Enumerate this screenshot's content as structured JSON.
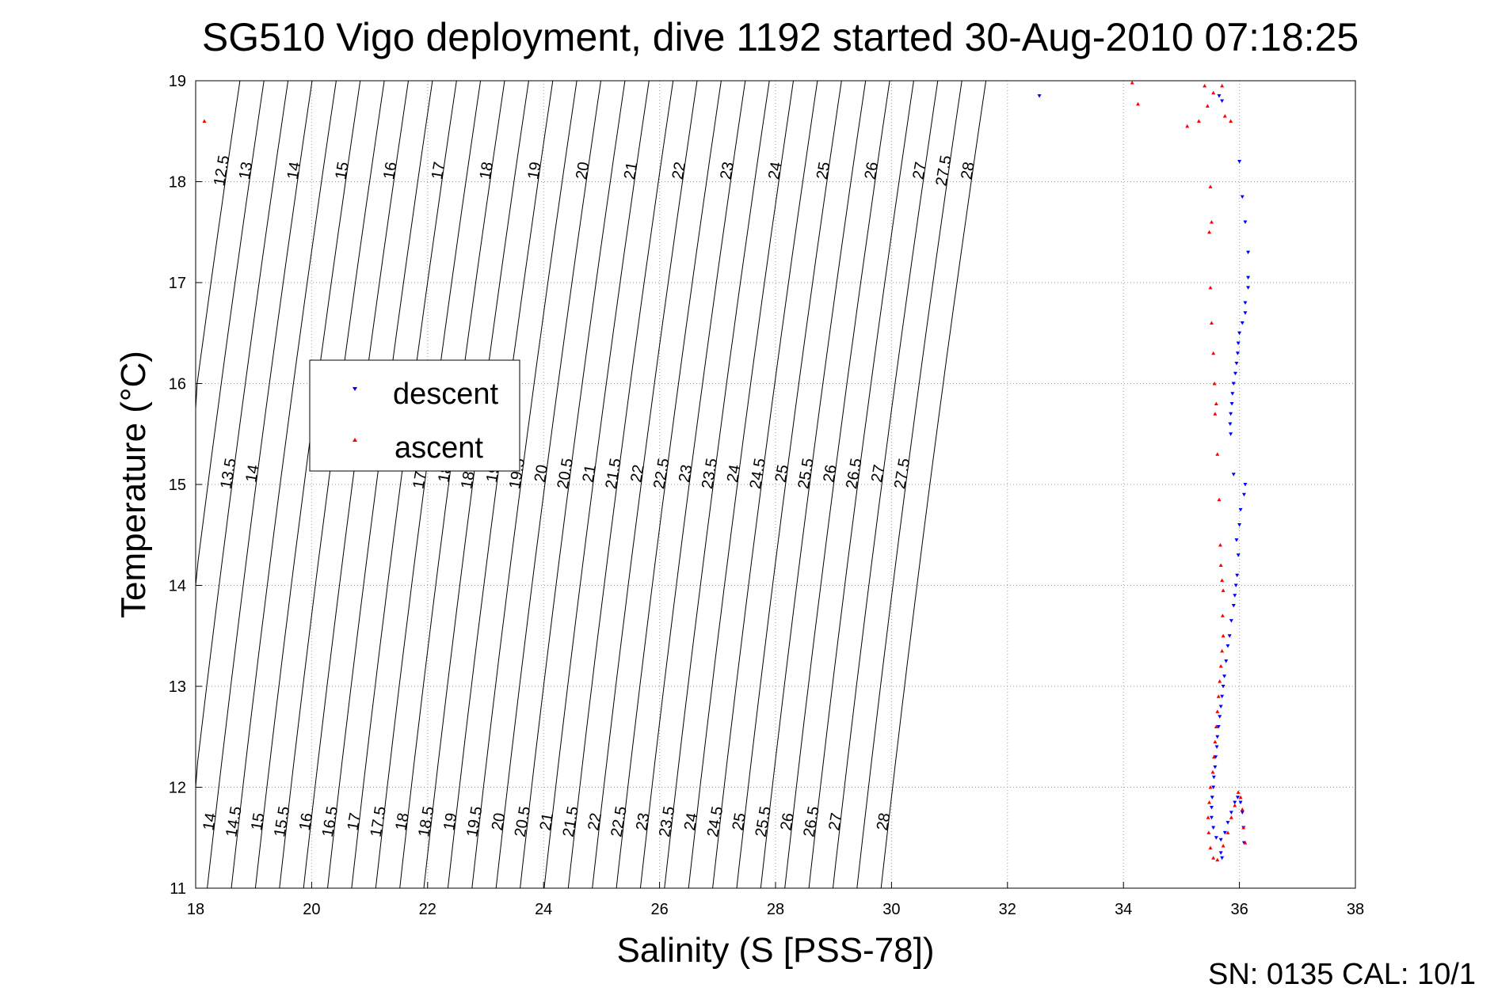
{
  "footer": {
    "serial_cal": "SN: 0135  CAL: 10/1"
  },
  "chart_data": {
    "type": "scatter",
    "title": "SG510 Vigo deployment, dive 1192 started 30-Aug-2010 07:18:25",
    "xlabel": "Salinity (S [PSS-78])",
    "ylabel": "Temperature (°C)",
    "xlim": [
      18,
      38
    ],
    "ylim": [
      11,
      19
    ],
    "xticks": [
      "18",
      "20",
      "22",
      "24",
      "26",
      "28",
      "30",
      "32",
      "34",
      "36",
      "38"
    ],
    "yticks": [
      "11",
      "12",
      "13",
      "14",
      "15",
      "16",
      "17",
      "18",
      "19"
    ],
    "grid": true,
    "legend_position": "left-center",
    "colors": {
      "descent": "#0000ff",
      "ascent": "#ff0000",
      "grid": "#999999",
      "contour": "#000000"
    },
    "density_contours": {
      "levels": [
        12.5,
        13,
        13.5,
        14,
        14.5,
        15,
        15.5,
        16,
        16.5,
        17,
        17.5,
        18,
        18.5,
        19,
        19.5,
        20,
        20.5,
        21,
        21.5,
        22,
        22.5,
        23,
        23.5,
        24,
        24.5,
        25,
        25.5,
        26,
        26.5,
        27,
        27.5,
        28
      ],
      "labels_row_top": [
        "12.5",
        "13",
        "14",
        "15",
        "16",
        "17",
        "18",
        "19",
        "20",
        "21",
        "22",
        "23",
        "24",
        "25",
        "26",
        "27",
        "27.5",
        "28"
      ],
      "labels_row_middle": [
        "13.5",
        "14",
        "17.5",
        "18",
        "18.5",
        "19",
        "19.5",
        "20",
        "20.5",
        "21",
        "21.5",
        "22",
        "22.5",
        "23",
        "23.5",
        "24",
        "24.5",
        "25",
        "25.5",
        "26",
        "26.5",
        "27",
        "27.5"
      ],
      "labels_row_bottom": [
        "13",
        "13.5",
        "14",
        "14.5",
        "15",
        "15.5",
        "16",
        "16.5",
        "17",
        "17.5",
        "18",
        "18.5",
        "19",
        "19.5",
        "20",
        "20.5",
        "21",
        "21.5",
        "22",
        "22.5",
        "23",
        "23.5",
        "24",
        "24.5",
        "25",
        "25.5",
        "26",
        "26.5",
        "27",
        "28"
      ]
    },
    "series": [
      {
        "name": "descent",
        "marker": "triangle-down",
        "points": [
          [
            32.55,
            18.85
          ],
          [
            35.65,
            18.85
          ],
          [
            35.7,
            18.8
          ],
          [
            36.0,
            18.2
          ],
          [
            36.05,
            17.85
          ],
          [
            36.1,
            17.6
          ],
          [
            36.15,
            17.3
          ],
          [
            36.15,
            17.05
          ],
          [
            36.15,
            16.95
          ],
          [
            36.1,
            16.8
          ],
          [
            36.1,
            16.7
          ],
          [
            36.05,
            16.6
          ],
          [
            36.0,
            16.5
          ],
          [
            35.98,
            16.4
          ],
          [
            35.97,
            16.3
          ],
          [
            35.95,
            16.2
          ],
          [
            35.93,
            16.1
          ],
          [
            35.9,
            16.0
          ],
          [
            35.88,
            15.9
          ],
          [
            35.87,
            15.8
          ],
          [
            35.85,
            15.7
          ],
          [
            35.84,
            15.6
          ],
          [
            35.85,
            15.5
          ],
          [
            35.9,
            15.1
          ],
          [
            36.1,
            15.0
          ],
          [
            36.08,
            14.9
          ],
          [
            36.02,
            14.75
          ],
          [
            36.0,
            14.6
          ],
          [
            35.95,
            14.45
          ],
          [
            35.98,
            14.3
          ],
          [
            35.96,
            14.1
          ],
          [
            35.94,
            14.0
          ],
          [
            35.92,
            13.9
          ],
          [
            35.9,
            13.8
          ],
          [
            35.86,
            13.65
          ],
          [
            35.83,
            13.5
          ],
          [
            35.8,
            13.4
          ],
          [
            35.77,
            13.25
          ],
          [
            35.74,
            13.1
          ],
          [
            35.72,
            13.0
          ],
          [
            35.7,
            12.9
          ],
          [
            35.68,
            12.8
          ],
          [
            35.66,
            12.7
          ],
          [
            35.64,
            12.6
          ],
          [
            35.62,
            12.5
          ],
          [
            35.61,
            12.4
          ],
          [
            35.59,
            12.3
          ],
          [
            35.58,
            12.2
          ],
          [
            35.56,
            12.1
          ],
          [
            35.55,
            12.0
          ],
          [
            35.53,
            11.9
          ],
          [
            35.52,
            11.8
          ],
          [
            35.52,
            11.7
          ],
          [
            35.55,
            11.6
          ],
          [
            35.6,
            11.5
          ],
          [
            35.68,
            11.48
          ],
          [
            35.75,
            11.55
          ],
          [
            35.8,
            11.65
          ],
          [
            35.86,
            11.75
          ],
          [
            35.92,
            11.85
          ],
          [
            35.97,
            11.9
          ],
          [
            36.02,
            11.85
          ],
          [
            36.05,
            11.75
          ],
          [
            36.07,
            11.6
          ],
          [
            36.08,
            11.45
          ],
          [
            35.7,
            11.3
          ],
          [
            35.68,
            11.35
          ]
        ]
      },
      {
        "name": "ascent",
        "marker": "triangle-up",
        "points": [
          [
            18.15,
            18.6
          ],
          [
            34.15,
            18.98
          ],
          [
            34.25,
            18.77
          ],
          [
            35.1,
            18.55
          ],
          [
            35.3,
            18.6
          ],
          [
            35.45,
            18.75
          ],
          [
            35.55,
            18.88
          ],
          [
            35.7,
            18.95
          ],
          [
            35.75,
            18.65
          ],
          [
            35.85,
            18.6
          ],
          [
            35.4,
            18.95
          ],
          [
            35.5,
            17.95
          ],
          [
            35.52,
            17.6
          ],
          [
            35.48,
            17.5
          ],
          [
            35.5,
            16.95
          ],
          [
            35.52,
            16.6
          ],
          [
            35.55,
            16.3
          ],
          [
            35.57,
            16.0
          ],
          [
            35.6,
            15.8
          ],
          [
            35.58,
            15.7
          ],
          [
            35.62,
            15.3
          ],
          [
            35.65,
            14.85
          ],
          [
            35.67,
            14.4
          ],
          [
            35.68,
            14.2
          ],
          [
            35.7,
            14.05
          ],
          [
            35.72,
            13.95
          ],
          [
            35.71,
            13.7
          ],
          [
            35.72,
            13.5
          ],
          [
            35.7,
            13.35
          ],
          [
            35.68,
            13.2
          ],
          [
            35.66,
            13.05
          ],
          [
            35.64,
            12.9
          ],
          [
            35.62,
            12.75
          ],
          [
            35.6,
            12.6
          ],
          [
            35.58,
            12.45
          ],
          [
            35.56,
            12.3
          ],
          [
            35.54,
            12.15
          ],
          [
            35.5,
            12.0
          ],
          [
            35.48,
            11.85
          ],
          [
            35.46,
            11.7
          ],
          [
            35.47,
            11.55
          ],
          [
            35.5,
            11.4
          ],
          [
            35.55,
            11.3
          ],
          [
            35.62,
            11.28
          ],
          [
            35.72,
            11.42
          ],
          [
            35.8,
            11.55
          ],
          [
            35.86,
            11.7
          ],
          [
            35.92,
            11.82
          ],
          [
            35.98,
            11.95
          ],
          [
            36.02,
            11.9
          ],
          [
            36.05,
            11.78
          ],
          [
            36.07,
            11.6
          ],
          [
            36.1,
            11.45
          ]
        ]
      }
    ]
  }
}
